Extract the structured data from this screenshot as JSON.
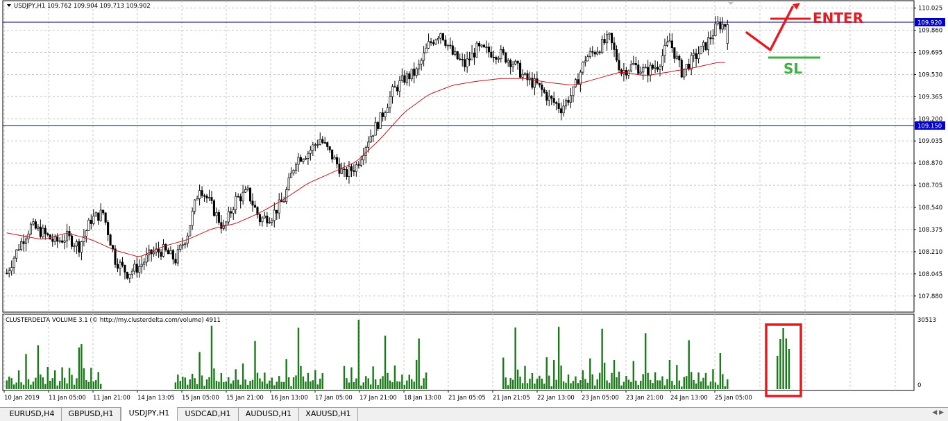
{
  "window": {
    "symbol_header": "USDJPY,H1  109.762 109.904 109.713 109.902"
  },
  "indicator": {
    "header": "CLUSTERDELTA VOLUME 3.1 (© http://my.clusterdelta.com/volume) 4911",
    "max_label": "30513",
    "zero_label": "0"
  },
  "annotations": {
    "enter_label": "ENTER",
    "sl_label": "SL",
    "enter_color": "#e31b23",
    "sl_color": "#3cb043",
    "box_color": "#e31b23"
  },
  "colors": {
    "candle": "#000000",
    "ma": "#c0161b",
    "hline": "#000080",
    "hline_label_bg": "#0000c8",
    "grid": "#c8c8c8",
    "volume": "#1a7a1a"
  },
  "tabs": [
    {
      "label": "EURUSD,H4",
      "active": false
    },
    {
      "label": "GBPUSD,H1",
      "active": false
    },
    {
      "label": "USDJPY,H1",
      "active": true
    },
    {
      "label": "USDCAD,H1",
      "active": false
    },
    {
      "label": "AUDUSD,H1",
      "active": false
    },
    {
      "label": "XAUUSD,H1",
      "active": false
    }
  ],
  "chart_data": {
    "type": "candlestick",
    "symbol": "USDJPY",
    "timeframe": "H1",
    "ohlc_last": {
      "open": 109.762,
      "high": 109.904,
      "low": 109.713,
      "close": 109.902
    },
    "ylim": [
      107.76,
      110.08
    ],
    "y_ticks": [
      "110.025",
      "109.860",
      "109.695",
      "109.530",
      "109.365",
      "109.200",
      "109.035",
      "108.870",
      "108.705",
      "108.540",
      "108.375",
      "108.210",
      "108.045",
      "107.880"
    ],
    "x_ticks": [
      "10 Jan 2019",
      "11 Jan 05:00",
      "11 Jan 21:00",
      "14 Jan 13:05",
      "15 Jan 05:00",
      "15 Jan 21:00",
      "16 Jan 13:00",
      "17 Jan 05:00",
      "17 Jan 21:00",
      "18 Jan 13:00",
      "21 Jan 05:05",
      "21 Jan 21:05",
      "22 Jan 13:00",
      "23 Jan 05:00",
      "23 Jan 21:00",
      "24 Jan 13:00",
      "25 Jan 05:00"
    ],
    "horizontal_lines": [
      {
        "price": "109.920",
        "value": 109.92
      },
      {
        "price": "109.150",
        "value": 109.15
      }
    ],
    "close_path": [
      [
        0,
        108.05
      ],
      [
        5,
        108.25
      ],
      [
        10,
        108.4
      ],
      [
        15,
        108.35
      ],
      [
        20,
        108.28
      ],
      [
        25,
        108.32
      ],
      [
        30,
        108.25
      ],
      [
        35,
        108.45
      ],
      [
        40,
        108.5
      ],
      [
        45,
        108.15
      ],
      [
        50,
        108.05
      ],
      [
        55,
        108.1
      ],
      [
        60,
        108.2
      ],
      [
        65,
        108.22
      ],
      [
        70,
        108.15
      ],
      [
        75,
        108.35
      ],
      [
        80,
        108.7
      ],
      [
        85,
        108.55
      ],
      [
        90,
        108.38
      ],
      [
        95,
        108.6
      ],
      [
        100,
        108.65
      ],
      [
        105,
        108.45
      ],
      [
        110,
        108.48
      ],
      [
        115,
        108.6
      ],
      [
        120,
        108.9
      ],
      [
        125,
        108.95
      ],
      [
        130,
        109.05
      ],
      [
        135,
        108.92
      ],
      [
        140,
        108.78
      ],
      [
        145,
        108.85
      ],
      [
        150,
        109.05
      ],
      [
        155,
        109.2
      ],
      [
        160,
        109.4
      ],
      [
        165,
        109.5
      ],
      [
        170,
        109.55
      ],
      [
        175,
        109.75
      ],
      [
        180,
        109.85
      ],
      [
        185,
        109.68
      ],
      [
        190,
        109.6
      ],
      [
        195,
        109.72
      ],
      [
        200,
        109.7
      ],
      [
        205,
        109.68
      ],
      [
        210,
        109.62
      ],
      [
        215,
        109.5
      ],
      [
        220,
        109.45
      ],
      [
        225,
        109.35
      ],
      [
        230,
        109.28
      ],
      [
        235,
        109.4
      ],
      [
        240,
        109.65
      ],
      [
        245,
        109.72
      ],
      [
        250,
        109.8
      ],
      [
        255,
        109.55
      ],
      [
        260,
        109.6
      ],
      [
        265,
        109.55
      ],
      [
        270,
        109.6
      ],
      [
        275,
        109.78
      ],
      [
        280,
        109.55
      ],
      [
        285,
        109.65
      ],
      [
        290,
        109.75
      ],
      [
        295,
        109.9
      ]
    ],
    "ma_path": [
      [
        0,
        108.35
      ],
      [
        15,
        108.3
      ],
      [
        25,
        108.35
      ],
      [
        35,
        108.3
      ],
      [
        45,
        108.22
      ],
      [
        55,
        108.17
      ],
      [
        65,
        108.25
      ],
      [
        75,
        108.3
      ],
      [
        85,
        108.38
      ],
      [
        95,
        108.42
      ],
      [
        105,
        108.5
      ],
      [
        115,
        108.6
      ],
      [
        125,
        108.72
      ],
      [
        135,
        108.8
      ],
      [
        145,
        108.88
      ],
      [
        155,
        109.05
      ],
      [
        165,
        109.25
      ],
      [
        175,
        109.38
      ],
      [
        185,
        109.45
      ],
      [
        195,
        109.48
      ],
      [
        205,
        109.5
      ],
      [
        215,
        109.5
      ],
      [
        225,
        109.47
      ],
      [
        235,
        109.45
      ],
      [
        245,
        109.5
      ],
      [
        255,
        109.55
      ],
      [
        265,
        109.52
      ],
      [
        275,
        109.55
      ],
      [
        285,
        109.58
      ],
      [
        295,
        109.62
      ]
    ],
    "volume_pattern": [
      0.12,
      0.18,
      0.25,
      0.08,
      0.14,
      0.3,
      0.15,
      0.1,
      0.5,
      0.2,
      0.06,
      0.16,
      0.22,
      0.9,
      0.35,
      0.18,
      0.1,
      0.32
    ],
    "volume_max": 30513
  }
}
